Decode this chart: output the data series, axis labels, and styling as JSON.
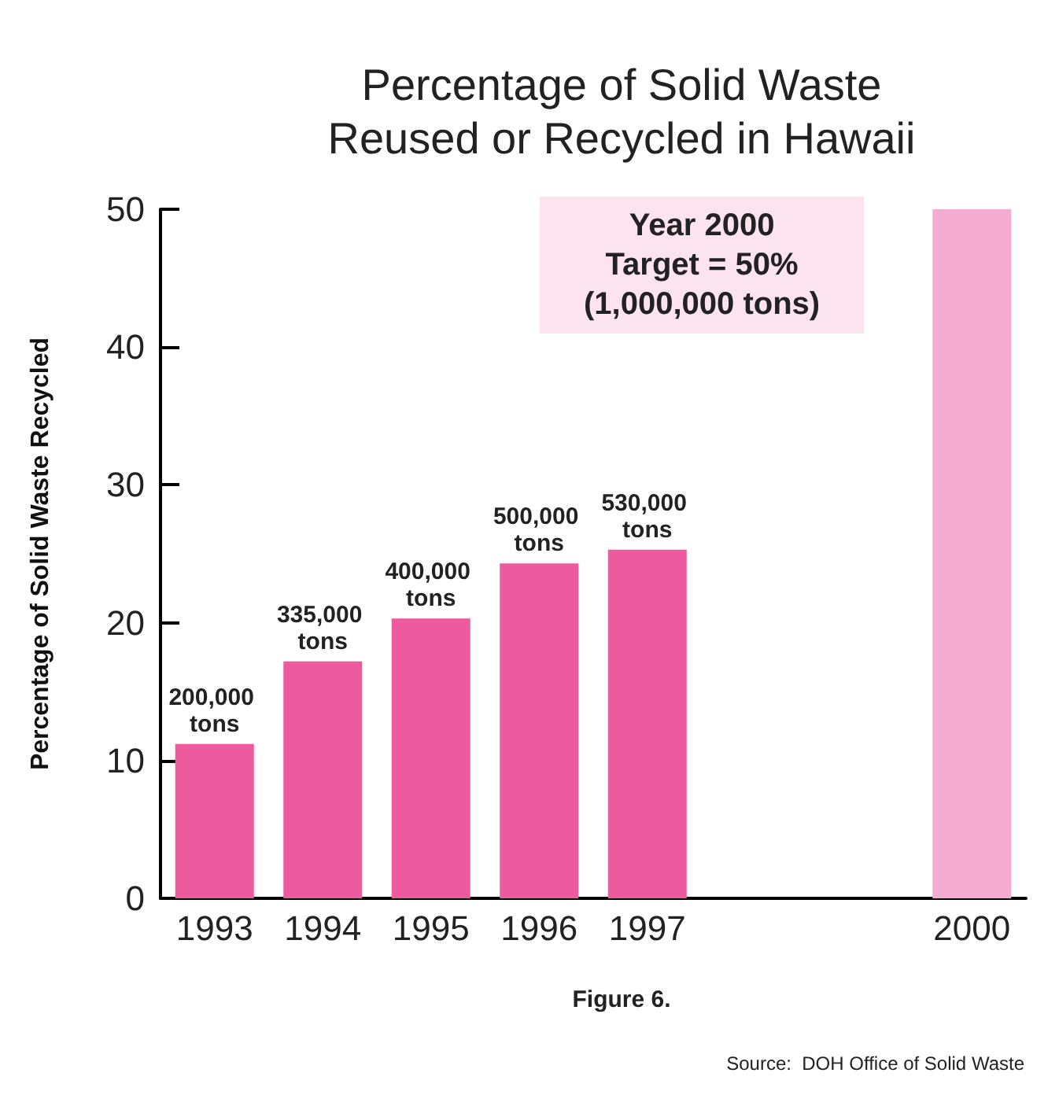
{
  "chart_data": {
    "type": "bar",
    "title": "Percentage of Solid Waste\nReused or Recycled in Hawaii",
    "ylabel": "Percentage of Solid Waste Recycled",
    "categories": [
      "1993",
      "1994",
      "1995",
      "1996",
      "1997",
      null,
      null,
      "2000"
    ],
    "values": [
      11.2,
      17.2,
      20.3,
      24.3,
      25.3,
      null,
      null,
      50
    ],
    "colors": [
      "#ee5a9e",
      "#ee5a9e",
      "#ee5a9e",
      "#ee5a9e",
      "#ee5a9e",
      null,
      null,
      "#f4acd0"
    ],
    "ylim": [
      0,
      50
    ],
    "yticks": [
      0,
      10,
      20,
      30,
      40,
      50
    ],
    "grid": false,
    "annotations": [
      "Year 2000\nTarget = 50%\n(1,000,000 tons)",
      "Figure 6.",
      "Source:  DOH Office of Solid Waste",
      {
        "text": "200,000 tons",
        "x": "1993",
        "y": 11.2
      },
      {
        "text": "335,000 tons",
        "x": "1994",
        "y": 17.2
      },
      {
        "text": "400,000 tons",
        "x": "1995",
        "y": 20.3
      },
      {
        "text": "500,000 tons",
        "x": "1996",
        "y": 24.3
      },
      {
        "text": "530,000 tons",
        "x": "1997",
        "y": 25.3
      }
    ]
  }
}
